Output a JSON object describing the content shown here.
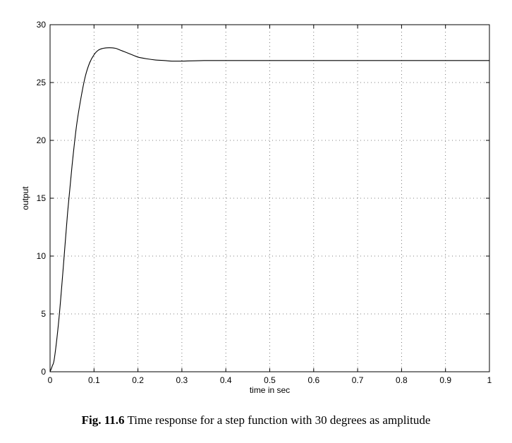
{
  "chart_data": {
    "type": "line",
    "title": "",
    "xlabel": "time in sec",
    "ylabel": "output",
    "xlim": [
      0,
      1
    ],
    "ylim": [
      0,
      30
    ],
    "xticks": [
      "0",
      "0.1",
      "0.2",
      "0.3",
      "0.4",
      "0.5",
      "0.6",
      "0.7",
      "0.8",
      "0.9",
      "1"
    ],
    "yticks": [
      "0",
      "5",
      "10",
      "15",
      "20",
      "25",
      "30"
    ],
    "grid": true,
    "series": [
      {
        "color": "#000000",
        "x": [
          0,
          0.005,
          0.01,
          0.02,
          0.03,
          0.04,
          0.05,
          0.06,
          0.07,
          0.08,
          0.09,
          0.1,
          0.11,
          0.12,
          0.13,
          0.14,
          0.15,
          0.16,
          0.17,
          0.18,
          0.19,
          0.2,
          0.22,
          0.24,
          0.26,
          0.28,
          0.3,
          0.35,
          0.4,
          0.5,
          0.6,
          0.7,
          0.8,
          0.9,
          1.0
        ],
        "y": [
          0,
          0.5,
          1.2,
          4.5,
          9.0,
          13.8,
          17.8,
          21.2,
          23.6,
          25.5,
          26.7,
          27.4,
          27.8,
          27.95,
          28.0,
          28.0,
          27.95,
          27.8,
          27.65,
          27.5,
          27.35,
          27.2,
          27.05,
          26.95,
          26.9,
          26.85,
          26.85,
          26.9,
          26.9,
          26.9,
          26.9,
          26.9,
          26.9,
          26.9,
          26.9
        ]
      }
    ]
  },
  "caption": {
    "figure_ref": "Fig. 11.6",
    "text": " Time response for a step function with 30 degrees as amplitude"
  }
}
